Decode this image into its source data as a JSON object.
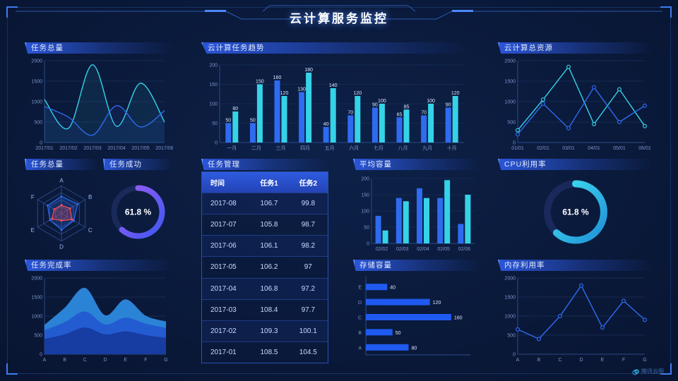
{
  "page": {
    "title": "云计算服务监控",
    "watermark": "腾讯云图"
  },
  "colors": {
    "background": "#091634",
    "accent_blue": "#2e6bf0",
    "accent_cyan": "#35d3e7",
    "gauge_purple": "#9b5cf7",
    "radar_red": "#ff4d4f",
    "header_bar": "#2c58e0"
  },
  "panels": {
    "task_total_line": {
      "title": "任务总量"
    },
    "task_trend": {
      "title": "云计算任务趋势"
    },
    "cloud_resources": {
      "title": "云计算总资源"
    },
    "task_radar": {
      "title": "任务总量"
    },
    "task_success": {
      "title": "任务成功"
    },
    "task_table": {
      "title": "任务管理"
    },
    "avg_capacity": {
      "title": "平均容量"
    },
    "cpu_usage": {
      "title": "CPU利用率"
    },
    "task_completion": {
      "title": "任务完成率"
    },
    "storage": {
      "title": "存储容量"
    },
    "memory": {
      "title": "内存利用率"
    }
  },
  "chart_data": [
    {
      "id": "taskTotalLine",
      "type": "line",
      "title": "任务总量",
      "smooth": true,
      "area": true,
      "x": [
        "2017/01",
        "2017/02",
        "2017/03",
        "2017/04",
        "2017/05",
        "2017/06"
      ],
      "ylim": [
        0,
        2000
      ],
      "yticks": [
        0,
        500,
        1000,
        1500,
        2000
      ],
      "series": [
        {
          "name": "series-cyan",
          "color": "#35d3e7",
          "values": [
            1050,
            350,
            1900,
            400,
            1450,
            500
          ]
        },
        {
          "name": "series-blue",
          "color": "#2e6bf0",
          "values": [
            880,
            620,
            180,
            900,
            380,
            780
          ]
        }
      ]
    },
    {
      "id": "taskTrend",
      "type": "bar",
      "title": "云计算任务趋势",
      "labels": true,
      "x": [
        "一月",
        "二月",
        "三月",
        "四月",
        "五月",
        "六月",
        "七月",
        "八月",
        "九月",
        "十月"
      ],
      "ylim": [
        0,
        200
      ],
      "yticks": [
        0,
        50,
        100,
        150,
        200
      ],
      "series": [
        {
          "name": "任务1",
          "color": "#2e6bf0",
          "values": [
            50,
            50,
            160,
            130,
            40,
            70,
            90,
            65,
            70,
            90
          ]
        },
        {
          "name": "任务2",
          "color": "#35d3e7",
          "values": [
            80,
            150,
            120,
            180,
            140,
            120,
            100,
            85,
            100,
            120
          ]
        }
      ]
    },
    {
      "id": "cloudResources",
      "type": "line",
      "title": "云计算总资源",
      "markers": true,
      "x": [
        "01/01",
        "02/01",
        "03/01",
        "04/01",
        "05/01",
        "06/01"
      ],
      "ylim": [
        0,
        2000
      ],
      "yticks": [
        0,
        500,
        1000,
        1500,
        2000
      ],
      "series": [
        {
          "name": "series-cyan",
          "color": "#35d3e7",
          "values": [
            300,
            1050,
            1850,
            450,
            1300,
            400
          ]
        },
        {
          "name": "series-blue",
          "color": "#2e6bf0",
          "values": [
            200,
            950,
            350,
            1350,
            500,
            900
          ]
        }
      ]
    },
    {
      "id": "taskRadar",
      "type": "radar",
      "title": "任务总量",
      "max": 100,
      "labels": [
        "A",
        "B",
        "C",
        "D",
        "E",
        "F"
      ],
      "series": [
        {
          "name": "series-blue",
          "color": "#2e6bf0",
          "values": [
            62,
            68,
            52,
            60,
            48,
            58
          ]
        },
        {
          "name": "series-red",
          "color": "#ff4d4f",
          "values": [
            30,
            36,
            44,
            26,
            40,
            30
          ]
        }
      ]
    },
    {
      "id": "successGauge",
      "type": "gauge",
      "title": "任务成功",
      "value": 61.8,
      "text": "61.8 %",
      "colors": [
        "#9b5cf7",
        "#3e58f0"
      ],
      "r": 34,
      "width": 8
    },
    {
      "id": "taskTable",
      "type": "table",
      "title": "任务管理",
      "columns": [
        "时间",
        "任务1",
        "任务2"
      ],
      "rows": [
        [
          "2017-08",
          "106.7",
          "99.8"
        ],
        [
          "2017-07",
          "105.8",
          "98.7"
        ],
        [
          "2017-06",
          "106.1",
          "98.2"
        ],
        [
          "2017-05",
          "106.2",
          "97"
        ],
        [
          "2017-04",
          "106.8",
          "97.2"
        ],
        [
          "2017-03",
          "108.4",
          "97.7"
        ],
        [
          "2017-02",
          "109.3",
          "100.1"
        ],
        [
          "2017-01",
          "108.5",
          "104.5"
        ]
      ]
    },
    {
      "id": "avgCapacity",
      "type": "bar",
      "title": "平均容量",
      "labels": false,
      "x": [
        "02/02",
        "02/03",
        "02/04",
        "02/05",
        "02/06"
      ],
      "ylim": [
        0,
        200
      ],
      "yticks": [
        0,
        50,
        100,
        150,
        200
      ],
      "series": [
        {
          "name": "series-blue",
          "color": "#2e6bf0",
          "values": [
            85,
            140,
            170,
            140,
            60
          ]
        },
        {
          "name": "series-cyan",
          "color": "#35d3e7",
          "values": [
            40,
            130,
            140,
            195,
            150
          ]
        }
      ]
    },
    {
      "id": "cpuGauge",
      "type": "gauge",
      "title": "CPU利用率",
      "value": 61.8,
      "text": "61.8 %",
      "colors": [
        "#3fe0ef",
        "#1f8fd8"
      ],
      "r": 40,
      "width": 10
    },
    {
      "id": "completion",
      "type": "stackedArea",
      "title": "任务完成率",
      "x": [
        "A",
        "B",
        "C",
        "D",
        "E",
        "F",
        "G"
      ],
      "ylim": [
        0,
        2000
      ],
      "yticks": [
        0,
        500,
        1000,
        1500,
        2000
      ],
      "series": [
        {
          "name": "layer-1",
          "color": "#16389c",
          "values": [
            400,
            520,
            700,
            520,
            600,
            500,
            430
          ]
        },
        {
          "name": "layer-2",
          "color": "#2257d0",
          "values": [
            230,
            320,
            420,
            260,
            360,
            300,
            260
          ]
        },
        {
          "name": "layer-3",
          "color": "#2f8fe8",
          "values": [
            140,
            380,
            620,
            240,
            480,
            210,
            170
          ]
        }
      ]
    },
    {
      "id": "storage",
      "type": "hbar",
      "title": "存储容量",
      "xmax": 180,
      "color": "#1f5af0",
      "categories": [
        "E",
        "D",
        "C",
        "B",
        "A"
      ],
      "values": [
        40,
        120,
        160,
        50,
        80
      ]
    },
    {
      "id": "memory",
      "type": "line",
      "title": "内存利用率",
      "markers": true,
      "x": [
        "A",
        "B",
        "C",
        "D",
        "E",
        "F",
        "G"
      ],
      "ylim": [
        0,
        2000
      ],
      "yticks": [
        0,
        500,
        1000,
        1500,
        2000
      ],
      "series": [
        {
          "name": "series-blue",
          "color": "#2e6bf0",
          "values": [
            650,
            400,
            1000,
            1800,
            700,
            1400,
            900
          ]
        }
      ]
    }
  ]
}
